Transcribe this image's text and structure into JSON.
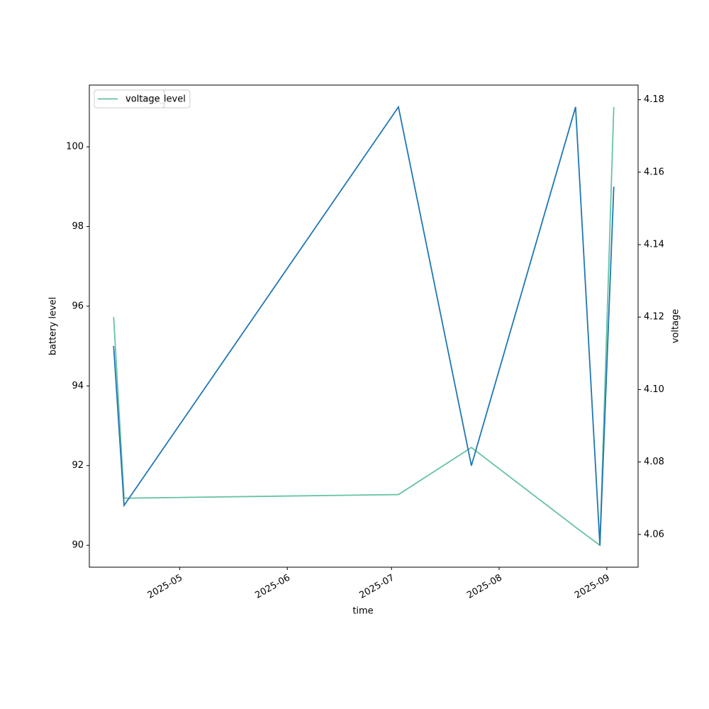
{
  "chart_data": {
    "type": "line",
    "x": [
      "2025-04-12",
      "2025-04-15",
      "2025-07-03",
      "2025-07-24",
      "2025-08-23",
      "2025-08-30",
      "2025-09-03"
    ],
    "xlabel": "time",
    "ylabel": "battery level",
    "y2label": "voltage",
    "series": [
      {
        "name": "battery_level",
        "color": "#1f77b4",
        "values": [
          95,
          91,
          101,
          92,
          101,
          90,
          99
        ]
      },
      {
        "name": "voltage",
        "color": "#66c2a5",
        "axis": "y2",
        "values": [
          4.12,
          4.07,
          4.071,
          4.084,
          4.062,
          4.057,
          4.178
        ]
      }
    ],
    "xlim": [
      "2025-04-05",
      "2025-09-10"
    ],
    "xticks": [
      {
        "value": "2025-05-01",
        "label": "2025-05"
      },
      {
        "value": "2025-06-01",
        "label": "2025-06"
      },
      {
        "value": "2025-07-01",
        "label": "2025-07"
      },
      {
        "value": "2025-08-01",
        "label": "2025-08"
      },
      {
        "value": "2025-09-01",
        "label": "2025-09"
      }
    ],
    "ylim": [
      89.45,
      101.55
    ],
    "yticks": [
      90,
      92,
      94,
      96,
      98,
      100
    ],
    "y2lim": [
      4.05095,
      4.18405
    ],
    "y2ticks": [
      4.06,
      4.08,
      {
        "value": 4.1,
        "label": "4.10"
      },
      4.12,
      4.14,
      4.16,
      4.18
    ],
    "legend": "upper left"
  }
}
